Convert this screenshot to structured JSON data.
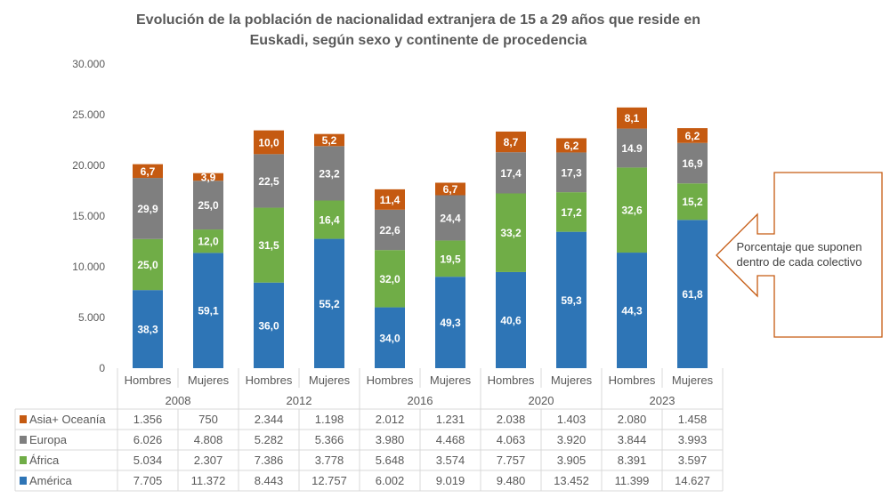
{
  "chart_data": {
    "type": "bar",
    "stacked": true,
    "title": "Evolución de la población de nacionalidad extranjera de 15 a 29 años que reside en Euskadi, según sexo y continente de procedencia",
    "title_lines": [
      "Evolución de la población de nacionalidad extranjera de 15 a 29 años que reside en",
      "Euskadi, según sexo y continente de procedencia"
    ],
    "ylim": [
      0,
      30000
    ],
    "yticks": [
      "0",
      "5.000",
      "10.000",
      "15.000",
      "20.000",
      "25.000",
      "30.000"
    ],
    "grid": false,
    "legend": "data-table",
    "years": [
      "2008",
      "2012",
      "2016",
      "2020",
      "2023"
    ],
    "categories": [
      "Hombres",
      "Mujeres",
      "Hombres",
      "Mujeres",
      "Hombres",
      "Mujeres",
      "Hombres",
      "Mujeres",
      "Hombres",
      "Mujeres"
    ],
    "series": [
      {
        "name": "Asia+ Oceanía",
        "color": "#c55a11",
        "values": [
          1356,
          750,
          2344,
          1198,
          2012,
          1231,
          2038,
          1403,
          2080,
          1458
        ],
        "table_labels": [
          "1.356",
          "750",
          "2.344",
          "1.198",
          "2.012",
          "1.231",
          "2.038",
          "1.403",
          "2.080",
          "1.458"
        ],
        "pct_labels": [
          "6,7",
          "3,9",
          "10,0",
          "5,2",
          "11,4",
          "6,7",
          "8,7",
          "6,2",
          "8,1",
          "6,2"
        ]
      },
      {
        "name": "Europa",
        "color": "#7f7f7f",
        "values": [
          6026,
          4808,
          5282,
          5366,
          3980,
          4468,
          4063,
          3920,
          3844,
          3993
        ],
        "table_labels": [
          "6.026",
          "4.808",
          "5.282",
          "5.366",
          "3.980",
          "4.468",
          "4.063",
          "3.920",
          "3.844",
          "3.993"
        ],
        "pct_labels": [
          "29,9",
          "25,0",
          "22,5",
          "23,2",
          "22,6",
          "24,4",
          "17,4",
          "17,3",
          "14.9",
          "16,9"
        ]
      },
      {
        "name": "África",
        "color": "#70ad47",
        "values": [
          5034,
          2307,
          7386,
          3778,
          5648,
          3574,
          7757,
          3905,
          8391,
          3597
        ],
        "table_labels": [
          "5.034",
          "2.307",
          "7.386",
          "3.778",
          "5.648",
          "3.574",
          "7.757",
          "3.905",
          "8.391",
          "3.597"
        ],
        "pct_labels": [
          "25,0",
          "12,0",
          "31,5",
          "16,4",
          "32,0",
          "19,5",
          "33,2",
          "17,2",
          "32,6",
          "15,2"
        ]
      },
      {
        "name": "América",
        "color": "#2e75b6",
        "values": [
          7705,
          11372,
          8443,
          12757,
          6002,
          9019,
          9480,
          13452,
          11399,
          14627
        ],
        "table_labels": [
          "7.705",
          "11.372",
          "8.443",
          "12.757",
          "6.002",
          "9.019",
          "9.480",
          "13.452",
          "11.399",
          "14.627"
        ],
        "pct_labels": [
          "38,3",
          "59,1",
          "36,0",
          "55,2",
          "34,0",
          "49,3",
          "40,6",
          "59,3",
          "44,3",
          "61,8"
        ]
      }
    ],
    "annotation": {
      "lines": [
        "Porcentaje que suponen",
        "dentro de cada colectivo"
      ],
      "border_color": "#c55a11"
    }
  }
}
